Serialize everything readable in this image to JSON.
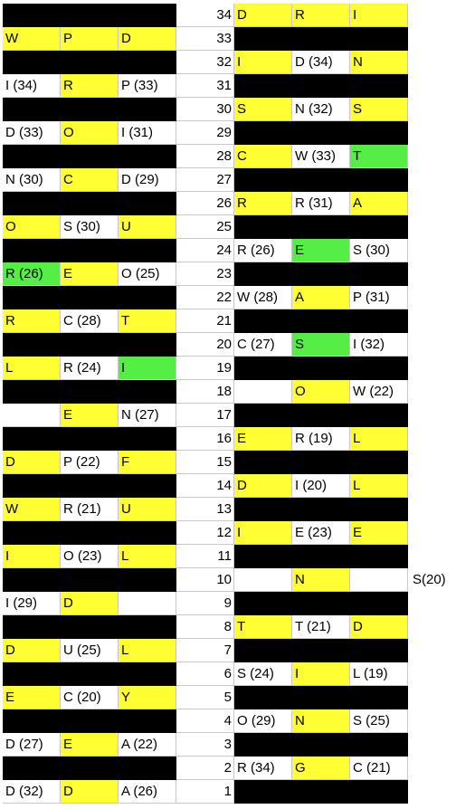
{
  "rows": [
    {
      "n": "34",
      "L": [
        null,
        null,
        null
      ],
      "R": [
        [
          "D",
          "y"
        ],
        [
          "R",
          "y"
        ],
        [
          "I",
          "y"
        ]
      ]
    },
    {
      "n": "33",
      "L": [
        [
          "W",
          "y"
        ],
        [
          "P",
          "y"
        ],
        [
          "D",
          "y"
        ]
      ],
      "R": [
        null,
        null,
        null
      ]
    },
    {
      "n": "32",
      "L": [
        null,
        null,
        null
      ],
      "R": [
        [
          "I",
          "y"
        ],
        [
          "D (34)",
          "w"
        ],
        [
          "N",
          "y"
        ]
      ]
    },
    {
      "n": "31",
      "L": [
        [
          "I (34)",
          "w"
        ],
        [
          "R",
          "y"
        ],
        [
          "P (33)",
          "w"
        ]
      ],
      "R": [
        null,
        null,
        null
      ]
    },
    {
      "n": "30",
      "L": [
        null,
        null,
        null
      ],
      "R": [
        [
          "S",
          "y"
        ],
        [
          "N (32)",
          "w"
        ],
        [
          "S",
          "y"
        ]
      ]
    },
    {
      "n": "29",
      "L": [
        [
          "D (33)",
          "w"
        ],
        [
          "O",
          "y"
        ],
        [
          "I (31)",
          "w"
        ]
      ],
      "R": [
        null,
        null,
        null
      ]
    },
    {
      "n": "28",
      "L": [
        null,
        null,
        null
      ],
      "R": [
        [
          "C",
          "y"
        ],
        [
          "W (33)",
          "w"
        ],
        [
          "T",
          "g"
        ]
      ]
    },
    {
      "n": "27",
      "L": [
        [
          "N (30)",
          "w"
        ],
        [
          "C",
          "y"
        ],
        [
          "D (29)",
          "w"
        ]
      ],
      "R": [
        null,
        null,
        null
      ]
    },
    {
      "n": "26",
      "L": [
        null,
        null,
        null
      ],
      "R": [
        [
          "R",
          "y"
        ],
        [
          "R (31)",
          "w"
        ],
        [
          "A",
          "y"
        ]
      ]
    },
    {
      "n": "25",
      "L": [
        [
          "O",
          "y"
        ],
        [
          "S (30)",
          "w"
        ],
        [
          "U",
          "y"
        ]
      ],
      "R": [
        null,
        null,
        null
      ]
    },
    {
      "n": "24",
      "L": [
        null,
        null,
        null
      ],
      "R": [
        [
          "R (26)",
          "w"
        ],
        [
          "E",
          "g"
        ],
        [
          "S (30)",
          "w"
        ]
      ]
    },
    {
      "n": "23",
      "L": [
        [
          "R (26)",
          "g"
        ],
        [
          "E",
          "y"
        ],
        [
          "O (25)",
          "w"
        ]
      ],
      "R": [
        null,
        null,
        null
      ]
    },
    {
      "n": "22",
      "L": [
        null,
        null,
        null
      ],
      "R": [
        [
          "W (28)",
          "w"
        ],
        [
          "A",
          "y"
        ],
        [
          "P (31)",
          "w"
        ]
      ]
    },
    {
      "n": "21",
      "L": [
        [
          "R",
          "y"
        ],
        [
          "C (28)",
          "w"
        ],
        [
          "T",
          "y"
        ]
      ],
      "R": [
        null,
        null,
        null
      ]
    },
    {
      "n": "20",
      "L": [
        null,
        null,
        null
      ],
      "R": [
        [
          "C (27)",
          "w"
        ],
        [
          "S",
          "g"
        ],
        [
          "I (32)",
          "w"
        ]
      ]
    },
    {
      "n": "19",
      "L": [
        [
          "L",
          "y"
        ],
        [
          "R (24)",
          "w"
        ],
        [
          "I",
          "g"
        ]
      ],
      "R": [
        null,
        null,
        null
      ]
    },
    {
      "n": "18",
      "L": [
        null,
        null,
        null
      ],
      "R": [
        [
          "",
          "w"
        ],
        [
          "O",
          "y"
        ],
        [
          "W (22)",
          "w"
        ]
      ]
    },
    {
      "n": "17",
      "L": [
        [
          "",
          "w"
        ],
        [
          "E",
          "y"
        ],
        [
          "N (27)",
          "w"
        ]
      ],
      "R": [
        null,
        null,
        null
      ]
    },
    {
      "n": "16",
      "L": [
        null,
        null,
        null
      ],
      "R": [
        [
          "E",
          "y"
        ],
        [
          "R (19)",
          "w"
        ],
        [
          "L",
          "y"
        ]
      ]
    },
    {
      "n": "15",
      "L": [
        [
          "D",
          "y"
        ],
        [
          "P (22)",
          "w"
        ],
        [
          "F",
          "y"
        ]
      ],
      "R": [
        null,
        null,
        null
      ]
    },
    {
      "n": "14",
      "L": [
        null,
        null,
        null
      ],
      "R": [
        [
          "D",
          "y"
        ],
        [
          "I (20)",
          "w"
        ],
        [
          "L",
          "y"
        ]
      ]
    },
    {
      "n": "13",
      "L": [
        [
          "W",
          "y"
        ],
        [
          "R (21)",
          "w"
        ],
        [
          "U",
          "y"
        ]
      ],
      "R": [
        null,
        null,
        null
      ]
    },
    {
      "n": "12",
      "L": [
        null,
        null,
        null
      ],
      "R": [
        [
          "I",
          "y"
        ],
        [
          "E (23)",
          "w"
        ],
        [
          "E",
          "y"
        ]
      ]
    },
    {
      "n": "11",
      "L": [
        [
          "I",
          "y"
        ],
        [
          "O (23)",
          "w"
        ],
        [
          "L",
          "y"
        ]
      ],
      "R": [
        null,
        null,
        null
      ]
    },
    {
      "n": "10",
      "L": [
        null,
        null,
        null
      ],
      "R": [
        [
          "",
          "w"
        ],
        [
          "N",
          "y"
        ],
        [
          "",
          "w"
        ]
      ],
      "extra": "S(20)"
    },
    {
      "n": "9",
      "L": [
        [
          "I (29)",
          "w"
        ],
        [
          "D",
          "y"
        ],
        [
          "",
          "w"
        ]
      ],
      "R": [
        null,
        null,
        null
      ]
    },
    {
      "n": "8",
      "L": [
        null,
        null,
        null
      ],
      "R": [
        [
          "T",
          "y"
        ],
        [
          "T (21)",
          "w"
        ],
        [
          "D",
          "y"
        ]
      ]
    },
    {
      "n": "7",
      "L": [
        [
          "D",
          "y"
        ],
        [
          "U (25)",
          "w"
        ],
        [
          "L",
          "y"
        ]
      ],
      "R": [
        null,
        null,
        null
      ]
    },
    {
      "n": "6",
      "L": [
        null,
        null,
        null
      ],
      "R": [
        [
          "S (24)",
          "w"
        ],
        [
          "I",
          "y"
        ],
        [
          "L (19)",
          "w"
        ]
      ]
    },
    {
      "n": "5",
      "L": [
        [
          "E",
          "y"
        ],
        [
          "C (20)",
          "w"
        ],
        [
          "Y",
          "y"
        ]
      ],
      "R": [
        null,
        null,
        null
      ]
    },
    {
      "n": "4",
      "L": [
        null,
        null,
        null
      ],
      "R": [
        [
          "O (29)",
          "w"
        ],
        [
          "N",
          "y"
        ],
        [
          "S (25)",
          "w"
        ]
      ]
    },
    {
      "n": "3",
      "L": [
        [
          "D (27)",
          "w"
        ],
        [
          "E",
          "y"
        ],
        [
          "A (22)",
          "w"
        ]
      ],
      "R": [
        null,
        null,
        null
      ]
    },
    {
      "n": "2",
      "L": [
        null,
        null,
        null
      ],
      "R": [
        [
          "R (34)",
          "w"
        ],
        [
          "G",
          "y"
        ],
        [
          "C (21)",
          "w"
        ]
      ]
    },
    {
      "n": "1",
      "L": [
        [
          "D (32)",
          "w"
        ],
        [
          "D",
          "y"
        ],
        [
          "A (26)",
          "w"
        ]
      ],
      "R": [
        null,
        null,
        null
      ]
    }
  ]
}
